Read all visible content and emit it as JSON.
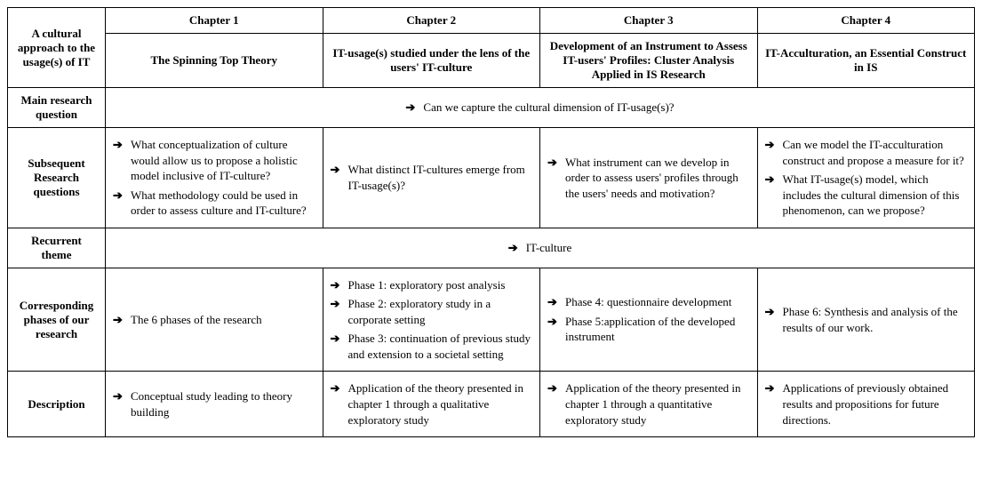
{
  "header": {
    "left": "A cultural approach to the usage(s) of IT",
    "ch1_label": "Chapter 1",
    "ch2_label": "Chapter 2",
    "ch3_label": "Chapter 3",
    "ch4_label": "Chapter 4",
    "ch1_title": "The Spinning Top Theory",
    "ch2_title": "IT-usage(s) studied under the lens of the users' IT-culture",
    "ch3_title": "Development of an Instrument to Assess IT-users' Profiles: Cluster Analysis Applied in IS Research",
    "ch4_title": "IT-Acculturation, an Essential Construct in IS"
  },
  "rows": {
    "mainq": {
      "label": "Main research question",
      "text": "Can we capture the cultural dimension of IT-usage(s)?"
    },
    "subq": {
      "label": "Subsequent Research questions",
      "c1a": "What conceptualization of culture would allow us to propose a holistic model inclusive of IT-culture?",
      "c1b": "What methodology could be used in order to assess culture and IT-culture?",
      "c2a": "What distinct IT-cultures emerge from IT-usage(s)?",
      "c3a": "What instrument can we develop in order to assess users' profiles through the users' needs and motivation?",
      "c4a": "Can we model the IT-acculturation construct and propose a measure for it?",
      "c4b": "What IT-usage(s) model, which includes the cultural dimension of this phenomenon, can we propose?"
    },
    "theme": {
      "label": "Recurrent theme",
      "text": "IT-culture"
    },
    "phases": {
      "label": "Corresponding phases of our research",
      "c1a": "The 6 phases of the research",
      "c2a": "Phase 1: exploratory post analysis",
      "c2b": "Phase 2: exploratory study in a corporate setting",
      "c2c": "Phase 3: continuation of previous study and extension to a societal setting",
      "c3a": "Phase 4: questionnaire development",
      "c3b": "Phase 5:application of the developed instrument",
      "c4a": "Phase 6: Synthesis and analysis of the results of our work."
    },
    "desc": {
      "label": "Description",
      "c1a": "Conceptual study leading to theory building",
      "c2a": "Application of the theory presented in chapter 1 through a qualitative exploratory study",
      "c3a": "Application of the theory presented in chapter 1 through a quantitative exploratory study",
      "c4a": "Applications of previously obtained results and propositions for future directions."
    }
  }
}
